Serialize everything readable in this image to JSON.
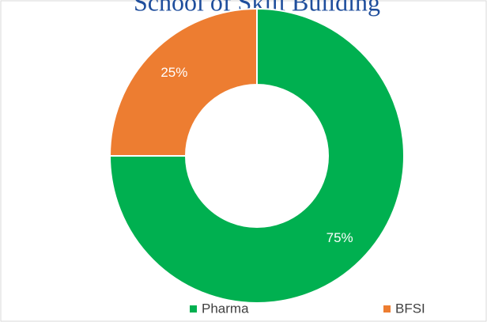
{
  "chart_data": {
    "type": "pie",
    "title": "School of Skill Building",
    "categories": [
      "Pharma",
      "BFSI"
    ],
    "values": [
      75,
      25
    ],
    "value_labels": [
      "75%",
      "25%"
    ],
    "colors": [
      "#00b050",
      "#ed7d31"
    ],
    "donut": true,
    "legend": "bottom"
  }
}
